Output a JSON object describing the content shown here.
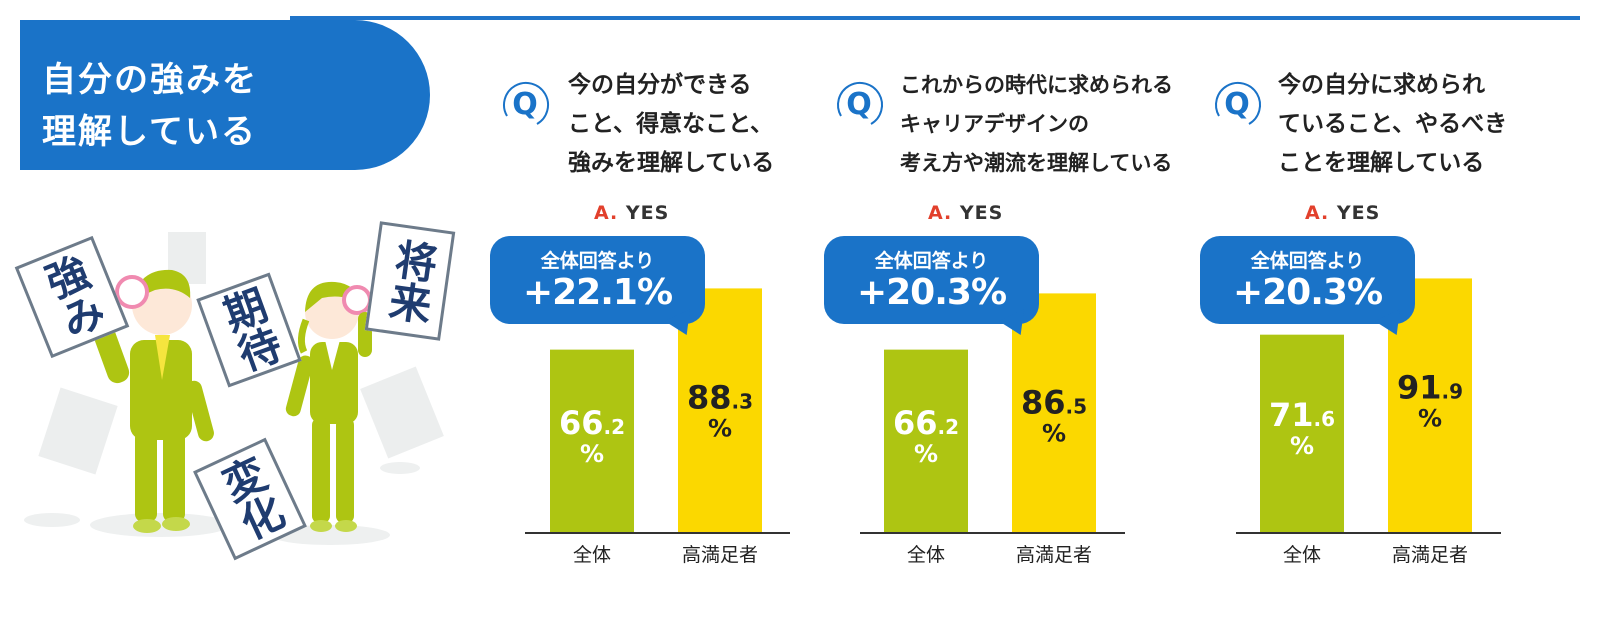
{
  "header": {
    "line1": "自分の強みを",
    "line2": "理解している"
  },
  "answer": {
    "prefix": "A.",
    "label": "YES"
  },
  "callout_label": "全体回答より",
  "illustration_words": [
    "強み",
    "期待",
    "将来",
    "変化"
  ],
  "colors": {
    "blue": "#1a73c8",
    "green": "#aec512",
    "yellow": "#fbd800",
    "red": "#e2402c"
  },
  "questions": [
    {
      "lines": [
        "今の自分ができる",
        "こと、得意なこと、",
        "強みを理解している"
      ],
      "diff": "+22.1%"
    },
    {
      "lines": [
        "これからの時代に求められる",
        "キャリアデザインの",
        "考え方や潮流を理解している"
      ],
      "diff": "+20.3%"
    },
    {
      "lines": [
        "今の自分に求められ",
        "ていること、やるべき",
        "ことを理解している"
      ],
      "diff": "+20.3%"
    }
  ],
  "chart_data": [
    {
      "type": "bar",
      "categories": [
        "全体",
        "高満足者"
      ],
      "values": [
        66.2,
        88.3
      ],
      "unit": "%",
      "ylim": [
        0,
        100
      ]
    },
    {
      "type": "bar",
      "categories": [
        "全体",
        "高満足者"
      ],
      "values": [
        66.2,
        86.5
      ],
      "unit": "%",
      "ylim": [
        0,
        100
      ]
    },
    {
      "type": "bar",
      "categories": [
        "全体",
        "高満足者"
      ],
      "values": [
        71.6,
        91.9
      ],
      "unit": "%",
      "ylim": [
        0,
        100
      ]
    }
  ]
}
